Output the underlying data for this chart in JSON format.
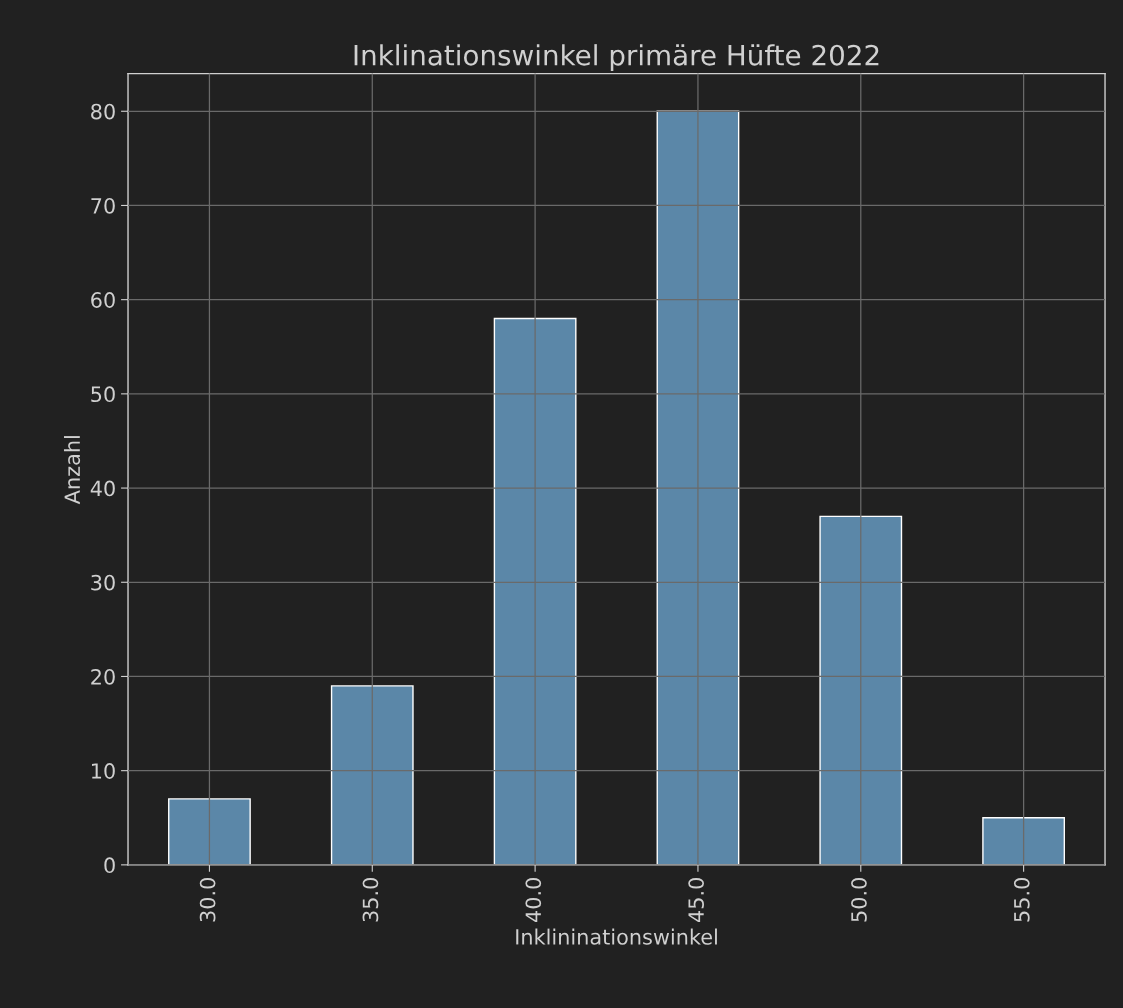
{
  "chart_data": {
    "type": "bar",
    "title": "Inklinationswinkel primäre Hüfte 2022",
    "xlabel": "Inklininationswinkel",
    "ylabel": "Anzahl",
    "categories": [
      "30.0",
      "35.0",
      "40.0",
      "45.0",
      "50.0",
      "55.0"
    ],
    "values": [
      7,
      19,
      58,
      80,
      37,
      5
    ],
    "color": "#5b87a8",
    "ylim": [
      0,
      84
    ],
    "yticks": [
      0,
      10,
      20,
      30,
      40,
      50,
      60,
      70,
      80
    ],
    "grid": true,
    "legend": false
  }
}
